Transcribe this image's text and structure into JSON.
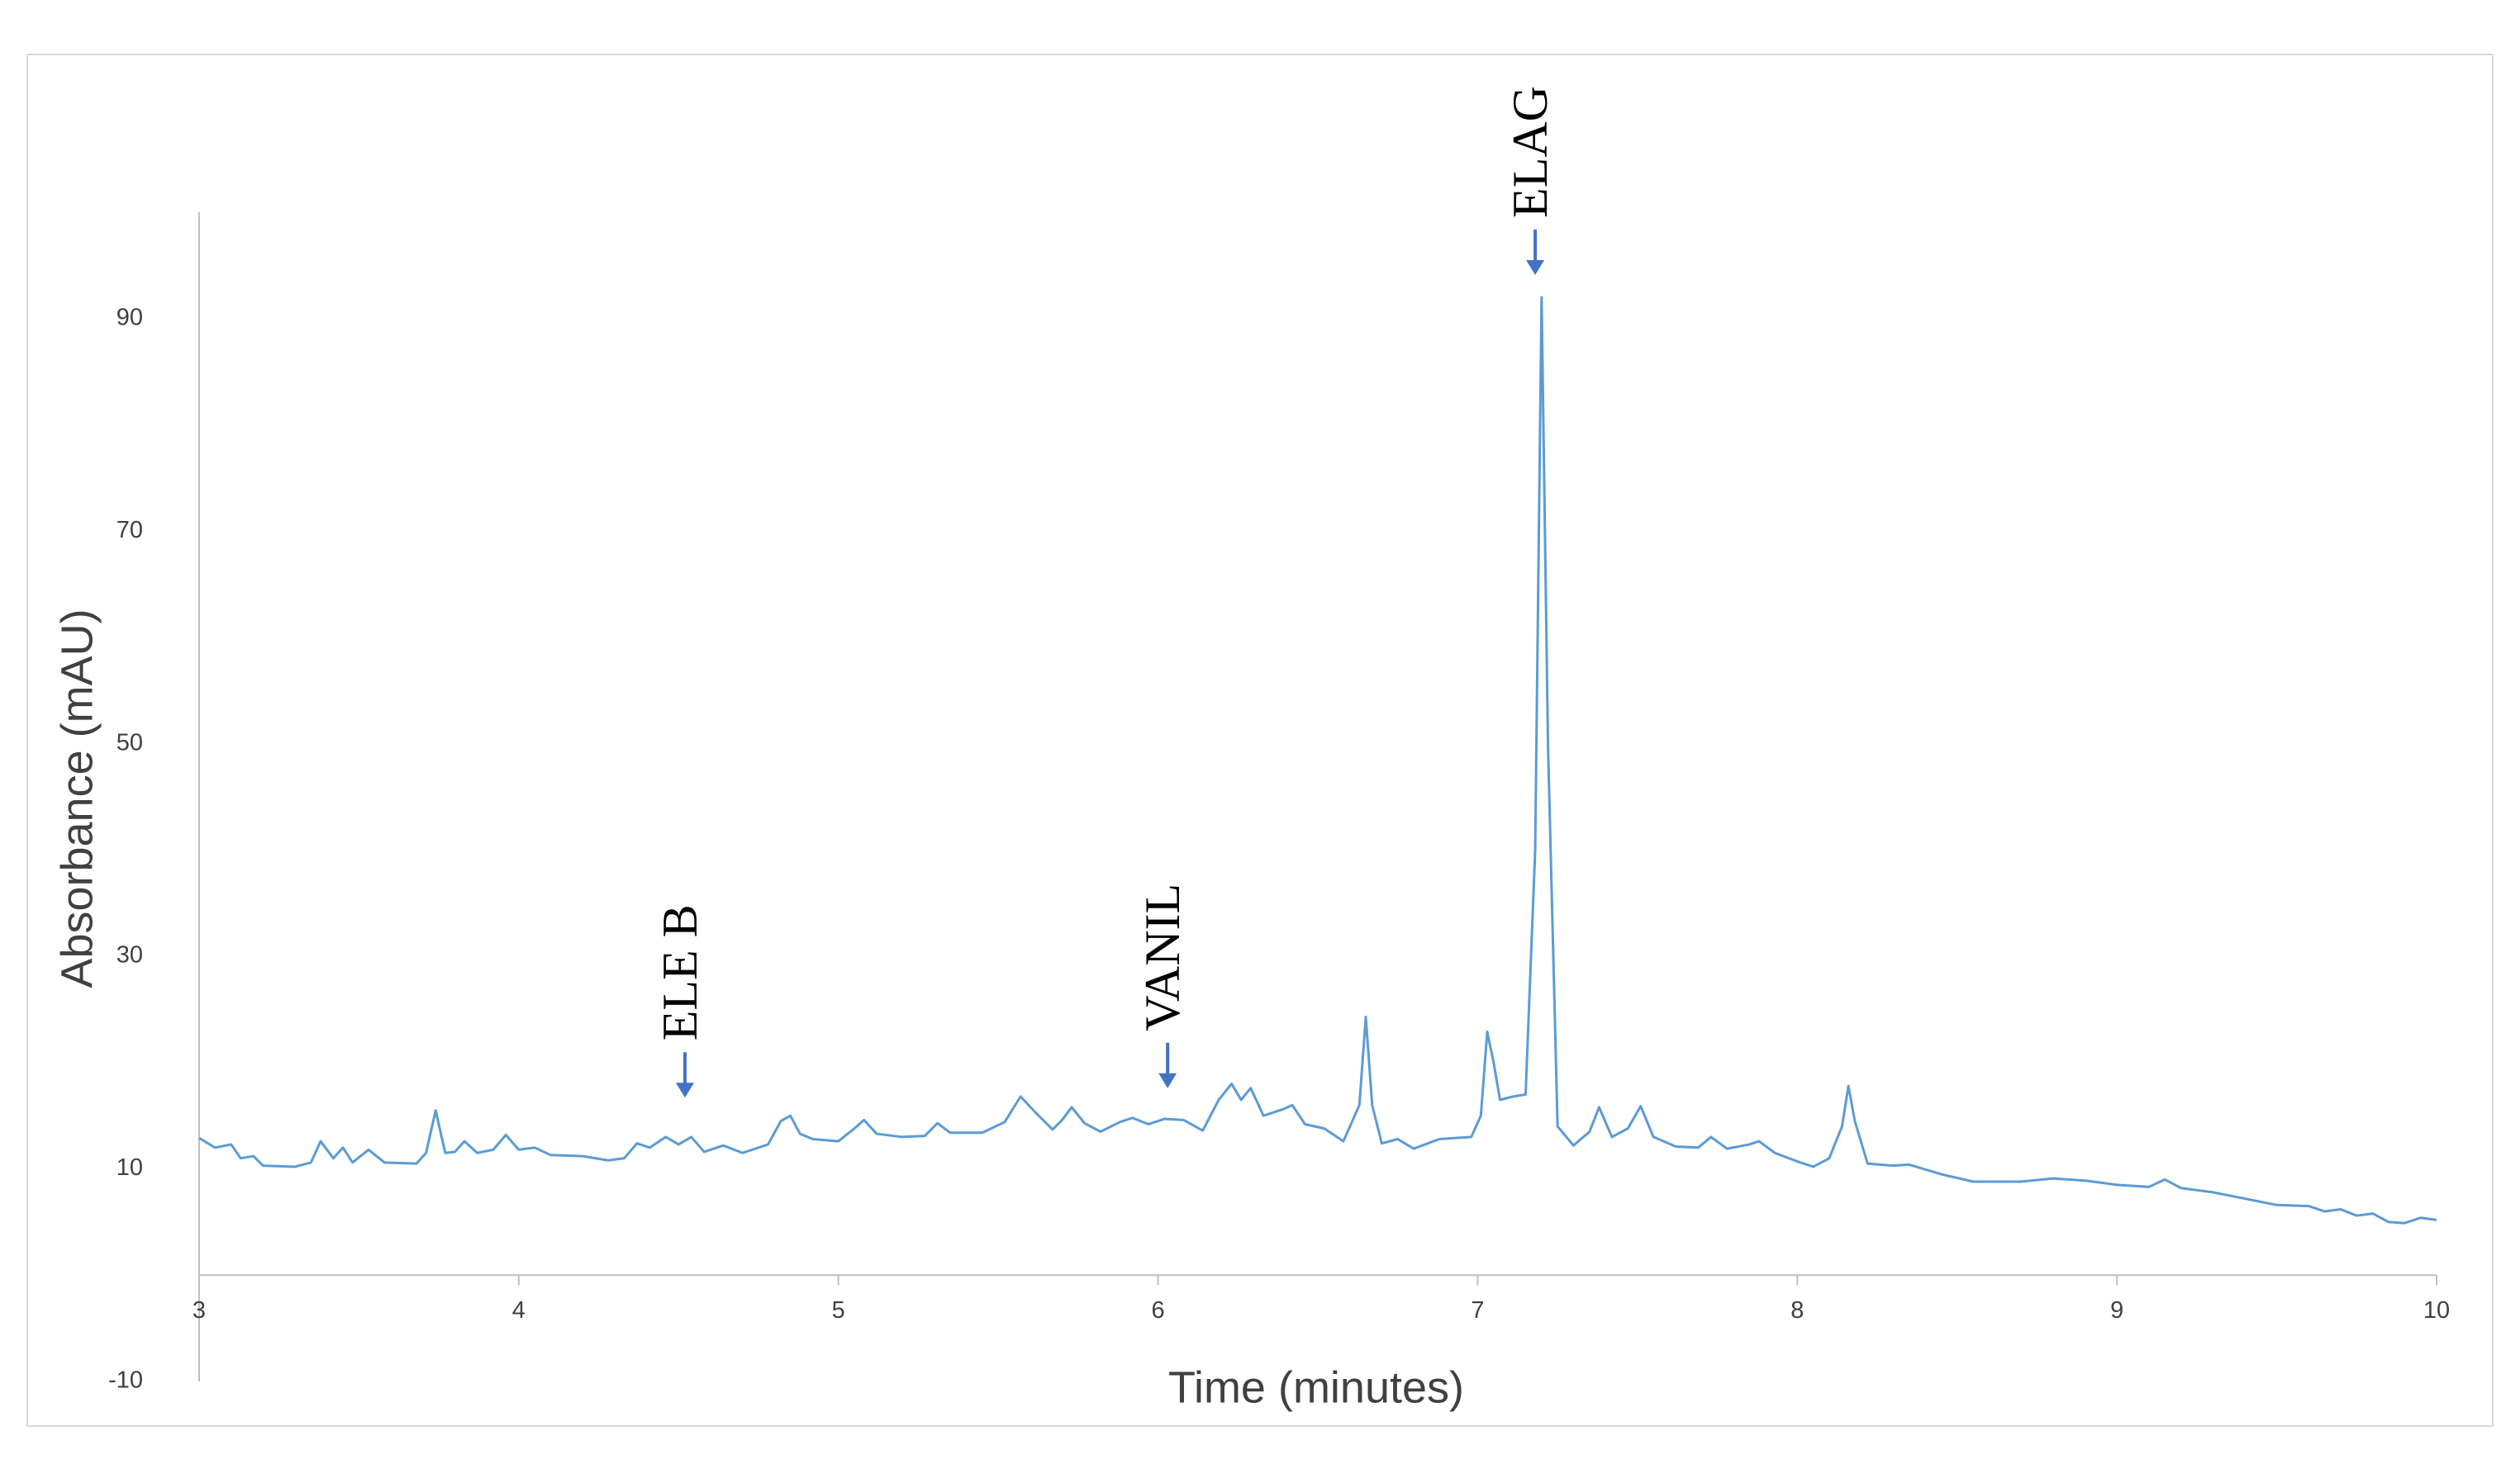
{
  "chart_data": {
    "type": "line",
    "x_label": "Time (minutes)",
    "y_label": "Absorbance (mAU)",
    "xlim": [
      3,
      10
    ],
    "ylim": [
      -10,
      100
    ],
    "xticks": [
      3,
      4,
      5,
      6,
      7,
      8,
      9,
      10
    ],
    "yticks": [
      -10,
      10,
      30,
      50,
      70,
      90
    ],
    "grid": false,
    "annotations": [
      {
        "text": "ELE B",
        "x": 4.52,
        "y": 16.7
      },
      {
        "text": "VANIL",
        "x": 6.03,
        "y": 17.6
      },
      {
        "text": "ELAG",
        "x": 7.18,
        "y": 94.1
      }
    ],
    "annotation_color": "#4472c4",
    "x": [
      3.0,
      3.05,
      3.1,
      3.13,
      3.17,
      3.2,
      3.3,
      3.35,
      3.38,
      3.42,
      3.45,
      3.48,
      3.53,
      3.58,
      3.68,
      3.71,
      3.74,
      3.77,
      3.8,
      3.83,
      3.87,
      3.92,
      3.96,
      4.0,
      4.05,
      4.1,
      4.2,
      4.28,
      4.33,
      4.37,
      4.41,
      4.46,
      4.5,
      4.54,
      4.58,
      4.64,
      4.7,
      4.78,
      4.82,
      4.85,
      4.88,
      4.92,
      5.0,
      5.05,
      5.08,
      5.12,
      5.2,
      5.27,
      5.31,
      5.35,
      5.45,
      5.52,
      5.57,
      5.62,
      5.67,
      5.7,
      5.73,
      5.77,
      5.82,
      5.88,
      5.92,
      5.97,
      6.02,
      6.08,
      6.14,
      6.19,
      6.23,
      6.26,
      6.29,
      6.33,
      6.39,
      6.42,
      6.46,
      6.52,
      6.58,
      6.63,
      6.65,
      6.67,
      6.7,
      6.75,
      6.8,
      6.88,
      6.98,
      7.01,
      7.03,
      7.05,
      7.07,
      7.11,
      7.15,
      7.18,
      7.2,
      7.22,
      7.25,
      7.3,
      7.35,
      7.38,
      7.42,
      7.47,
      7.51,
      7.55,
      7.62,
      7.69,
      7.73,
      7.78,
      7.85,
      7.88,
      7.93,
      8.0,
      8.05,
      8.1,
      8.14,
      8.16,
      8.18,
      8.22,
      8.3,
      8.35,
      8.45,
      8.55,
      8.7,
      8.8,
      8.9,
      9.0,
      9.1,
      9.15,
      9.2,
      9.3,
      9.4,
      9.5,
      9.6,
      9.65,
      9.7,
      9.75,
      9.8,
      9.85,
      9.9,
      9.95,
      10.0
    ],
    "series": [
      {
        "color": "#5b9bd5",
        "values": [
          12.9,
          12.0,
          12.3,
          11.0,
          11.2,
          10.3,
          10.2,
          10.6,
          12.6,
          11.0,
          12.0,
          10.6,
          11.8,
          10.6,
          10.5,
          11.5,
          15.5,
          11.5,
          11.6,
          12.6,
          11.5,
          11.8,
          13.2,
          11.8,
          12.0,
          11.3,
          11.2,
          10.8,
          11.0,
          12.4,
          12.0,
          13.0,
          12.3,
          13.0,
          11.6,
          12.2,
          11.5,
          12.3,
          14.5,
          15.0,
          13.3,
          12.8,
          12.6,
          13.8,
          14.6,
          13.3,
          13.0,
          13.1,
          14.3,
          13.4,
          13.4,
          14.4,
          16.8,
          15.2,
          13.7,
          14.6,
          15.8,
          14.3,
          13.5,
          14.4,
          14.8,
          14.2,
          14.7,
          14.6,
          13.6,
          16.5,
          18.0,
          16.5,
          17.6,
          15.0,
          15.6,
          16.0,
          14.2,
          13.8,
          12.6,
          16.0,
          24.3,
          16.0,
          12.4,
          12.8,
          11.9,
          12.8,
          13.0,
          15.0,
          22.9,
          20.0,
          16.5,
          16.8,
          17.0,
          40.0,
          92.0,
          50.0,
          14.0,
          12.2,
          13.5,
          15.8,
          13.0,
          13.8,
          15.9,
          13.0,
          12.1,
          12.0,
          13.0,
          11.9,
          12.3,
          12.6,
          11.5,
          10.7,
          10.2,
          11.0,
          14.0,
          17.8,
          14.5,
          10.5,
          10.3,
          10.4,
          9.5,
          8.8,
          8.8,
          9.1,
          8.9,
          8.5,
          8.3,
          9.0,
          8.2,
          7.8,
          7.2,
          6.6,
          6.5,
          6.0,
          6.2,
          5.6,
          5.8,
          5.0,
          4.9,
          5.4,
          5.2
        ]
      }
    ]
  }
}
